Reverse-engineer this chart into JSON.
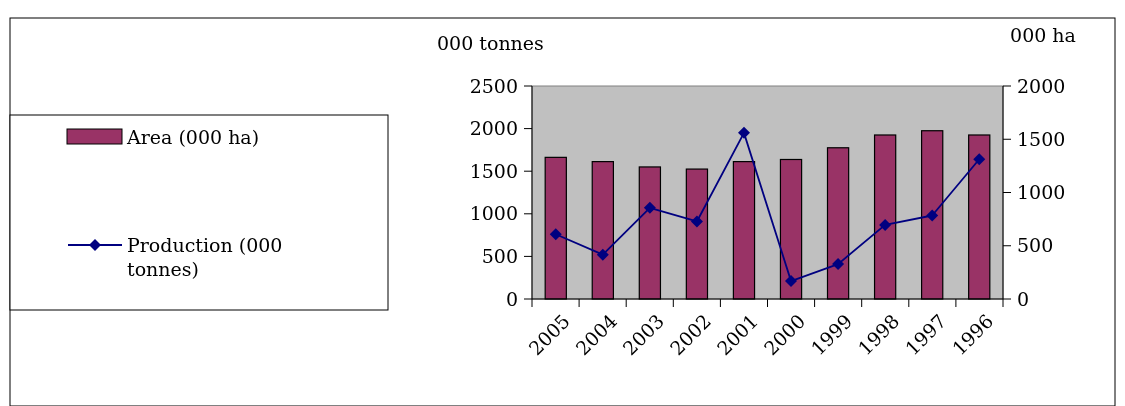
{
  "chart_data": {
    "type": "bar",
    "ylabel": "000 tonnes",
    "y2label": "000 ha",
    "categories": [
      "2005",
      "2004",
      "2003",
      "2002",
      "2001",
      "2000",
      "1999",
      "1998",
      "1997",
      "1996"
    ],
    "series": [
      {
        "name": "Area (000 ha)",
        "axis": "y2",
        "color": "#993366",
        "values": [
          1330,
          1290,
          1240,
          1220,
          1290,
          1310,
          1420,
          1540,
          1580,
          1540
        ]
      },
      {
        "name": "Production (000 tonnes)",
        "type": "line",
        "color": "#000080",
        "marker": "diamond",
        "values": [
          760,
          520,
          1070,
          910,
          1950,
          210,
          410,
          870,
          980,
          1640
        ]
      }
    ],
    "ylim": [
      0,
      2500
    ],
    "yticks": [
      0,
      500,
      1000,
      1500,
      2000,
      2500
    ],
    "y2lim": [
      0,
      2000
    ],
    "y2ticks": [
      0,
      500,
      1000,
      1500,
      2000
    ],
    "legend": "left",
    "grid": false
  }
}
